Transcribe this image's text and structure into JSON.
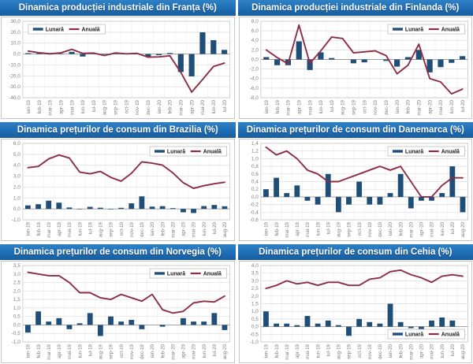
{
  "legend": {
    "lunara_label": "Lunară",
    "anuala_label": "Anuală"
  },
  "colors": {
    "bar": "#1F4E79",
    "line": "#8C2D46",
    "title_bg": "#1F6DB4",
    "title_text": "#FFFFFF",
    "grid": "#DCDCDC",
    "vgrid": "#EFEFEF",
    "zero_line": "#9C9C9C",
    "plot_border": "#C9C9C9",
    "axis_text": "#7F7F7F",
    "legend_border": "#BFBFBF",
    "legend_text": "#1A1A1A"
  },
  "chart_data": [
    {
      "title": "Dinamica producției industriale din Franța (%)",
      "type": "bar",
      "categories": [
        "ian-19",
        "feb-19",
        "mar-19",
        "apr-19",
        "mai-19",
        "iun-19",
        "iul-19",
        "aug-19",
        "sep-19",
        "oct-19",
        "nov-19",
        "dec-19",
        "ian-20",
        "feb-20",
        "mar-20",
        "apr-20",
        "mai-20",
        "iun-20",
        "iul-20"
      ],
      "series": [
        {
          "name": "Lunară",
          "type": "bar",
          "values": [
            0.8,
            0.7,
            -0.4,
            0.3,
            2.0,
            -2.3,
            0.4,
            -0.4,
            0.4,
            0.4,
            0.2,
            -2.6,
            -1.1,
            0.9,
            -16.5,
            -20.5,
            19.9,
            12.7,
            3.8
          ]
        },
        {
          "name": "Anuală",
          "type": "line",
          "values": [
            2.7,
            1.2,
            0.3,
            1.1,
            4.3,
            0.6,
            0.9,
            -1.4,
            1.0,
            0.2,
            0.6,
            -2.9,
            -2.6,
            -1.6,
            -16.8,
            -34.9,
            -23.3,
            -11.4,
            -8.3
          ]
        }
      ],
      "ylim": [
        -40,
        30
      ],
      "y_step": 10,
      "grid": true,
      "legend_position": "top-left"
    },
    {
      "title": "Dinamica producției industriale din Finlanda (%)",
      "type": "bar",
      "categories": [
        "ian-19",
        "feb-19",
        "mar-19",
        "apr-19",
        "mai-19",
        "iun-19",
        "iul-19",
        "aug-19",
        "sep-19",
        "oct-19",
        "nov-19",
        "dec-19",
        "ian-20",
        "feb-20",
        "mar-20",
        "apr-20",
        "mai-20",
        "iun-20",
        "iul-20"
      ],
      "series": [
        {
          "name": "Lunară",
          "type": "bar",
          "values": [
            0.5,
            -1.2,
            -1.2,
            3.8,
            -2.2,
            1.5,
            0.3,
            0.0,
            -0.8,
            -0.6,
            0.0,
            -0.3,
            -1.5,
            0.5,
            2.0,
            -2.7,
            -1.6,
            -0.7,
            0.7
          ]
        },
        {
          "name": "Anuală",
          "type": "line",
          "values": [
            2.0,
            0.4,
            -0.9,
            7.2,
            -0.8,
            1.8,
            4.7,
            4.4,
            1.4,
            1.6,
            1.8,
            0.8,
            -3.0,
            -1.2,
            3.2,
            -4.0,
            -4.7,
            -7.2,
            -6.2
          ]
        }
      ],
      "ylim": [
        -8,
        8
      ],
      "y_step": 2,
      "grid": true,
      "legend_position": "top-right"
    },
    {
      "title": "Dinamica prețurilor de consum din Brazilia (%)",
      "type": "bar",
      "categories": [
        "ian-19",
        "feb-19",
        "mar-19",
        "apr-19",
        "mai-19",
        "iun-19",
        "iul-19",
        "aug-19",
        "sep-19",
        "oct-19",
        "nov-19",
        "dec-19",
        "ian-20",
        "feb-20",
        "mar-20",
        "apr-20",
        "mai-20",
        "iun-20",
        "iul-20",
        "aug-20"
      ],
      "series": [
        {
          "name": "Lunară",
          "type": "bar",
          "values": [
            0.32,
            0.43,
            0.75,
            0.57,
            0.13,
            0.01,
            0.19,
            0.11,
            -0.04,
            0.1,
            0.51,
            1.15,
            0.21,
            0.25,
            0.07,
            -0.31,
            -0.38,
            0.26,
            0.36,
            0.24
          ]
        },
        {
          "name": "Anuală",
          "type": "line",
          "values": [
            3.78,
            3.89,
            4.58,
            4.94,
            4.66,
            3.37,
            3.22,
            3.43,
            2.89,
            2.54,
            3.27,
            4.31,
            4.19,
            4.01,
            3.3,
            2.4,
            1.88,
            2.13,
            2.31,
            2.44
          ]
        }
      ],
      "ylim": [
        -1,
        6
      ],
      "y_step": 1,
      "grid": true,
      "legend_position": "top-right"
    },
    {
      "title": "Dinamica prețurilor de consum din Danemarca (%)",
      "type": "bar",
      "categories": [
        "ian-19",
        "feb-19",
        "mar-19",
        "apr-19",
        "mai-19",
        "iun-19",
        "iul-19",
        "aug-19",
        "sep-19",
        "oct-19",
        "nov-19",
        "dec-19",
        "ian-20",
        "feb-20",
        "mar-20",
        "apr-20",
        "mai-20",
        "iun-20",
        "iul-20",
        "aug-20"
      ],
      "series": [
        {
          "name": "Lunară",
          "type": "bar",
          "values": [
            0.2,
            0.5,
            0.1,
            0.3,
            -0.1,
            -0.2,
            0.6,
            -0.4,
            -0.2,
            0.4,
            -0.2,
            -0.2,
            0.1,
            0.6,
            -0.3,
            -0.1,
            -0.1,
            0.1,
            0.8,
            -0.4
          ]
        },
        {
          "name": "Anuală",
          "type": "line",
          "values": [
            1.3,
            1.1,
            1.2,
            1.0,
            0.7,
            0.6,
            0.4,
            0.4,
            0.5,
            0.6,
            0.7,
            0.8,
            0.7,
            0.8,
            0.4,
            0.0,
            0.0,
            0.3,
            0.5,
            0.5
          ]
        }
      ],
      "ylim": [
        -0.6,
        1.4
      ],
      "y_step": 0.2,
      "grid": true,
      "legend_position": "top-right"
    },
    {
      "title": "Dinamica prețurilor de consum din Norvegia (%)",
      "type": "bar",
      "categories": [
        "ian-19",
        "feb-19",
        "mar-19",
        "apr-19",
        "mai-19",
        "iun-19",
        "iul-19",
        "aug-19",
        "sep-19",
        "oct-19",
        "nov-19",
        "dec-19",
        "ian-20",
        "feb-20",
        "mar-20",
        "apr-20",
        "mai-20",
        "iun-20",
        "iul-20",
        "aug-20"
      ],
      "series": [
        {
          "name": "Lunară",
          "type": "bar",
          "values": [
            -0.45,
            0.8,
            0.2,
            0.4,
            -0.25,
            0.1,
            0.7,
            -0.65,
            0.5,
            0.2,
            0.3,
            -0.25,
            0.0,
            -0.1,
            0.0,
            0.4,
            0.2,
            0.2,
            0.7,
            -0.3
          ]
        },
        {
          "name": "Anuală",
          "type": "line",
          "values": [
            3.1,
            3.0,
            2.9,
            2.9,
            2.5,
            1.9,
            1.9,
            1.6,
            1.5,
            1.8,
            1.6,
            1.4,
            1.8,
            0.9,
            0.7,
            0.8,
            1.3,
            1.4,
            1.35,
            1.7
          ]
        }
      ],
      "ylim": [
        -1,
        3.5
      ],
      "y_step": 0.5,
      "grid": true,
      "legend_position": "top-right"
    },
    {
      "title": "Dinamica prețurilor de consum din Cehia (%)",
      "type": "bar",
      "categories": [
        "ian-19",
        "feb-19",
        "mar-19",
        "apr-19",
        "mai-19",
        "iun-19",
        "iul-19",
        "aug-19",
        "sep-19",
        "oct-19",
        "nov-19",
        "dec-19",
        "ian-20",
        "feb-20",
        "mar-20",
        "apr-20",
        "mai-20",
        "iun-20",
        "iul-20",
        "aug-20"
      ],
      "series": [
        {
          "name": "Lunară",
          "type": "bar",
          "values": [
            1.0,
            0.2,
            0.2,
            0.1,
            0.7,
            0.2,
            0.4,
            0.1,
            -0.6,
            0.5,
            0.3,
            0.2,
            1.5,
            0.3,
            -0.1,
            -0.2,
            0.4,
            0.6,
            0.4,
            0.0
          ]
        },
        {
          "name": "Anuală",
          "type": "line",
          "values": [
            2.5,
            2.7,
            3.0,
            2.8,
            2.9,
            2.7,
            2.9,
            2.9,
            2.7,
            2.7,
            3.1,
            3.2,
            3.6,
            3.7,
            3.4,
            3.2,
            2.9,
            3.3,
            3.4,
            3.3
          ]
        }
      ],
      "ylim": [
        -1,
        4
      ],
      "y_step": 0.5,
      "grid": true,
      "legend_position": "bottom-right"
    }
  ]
}
